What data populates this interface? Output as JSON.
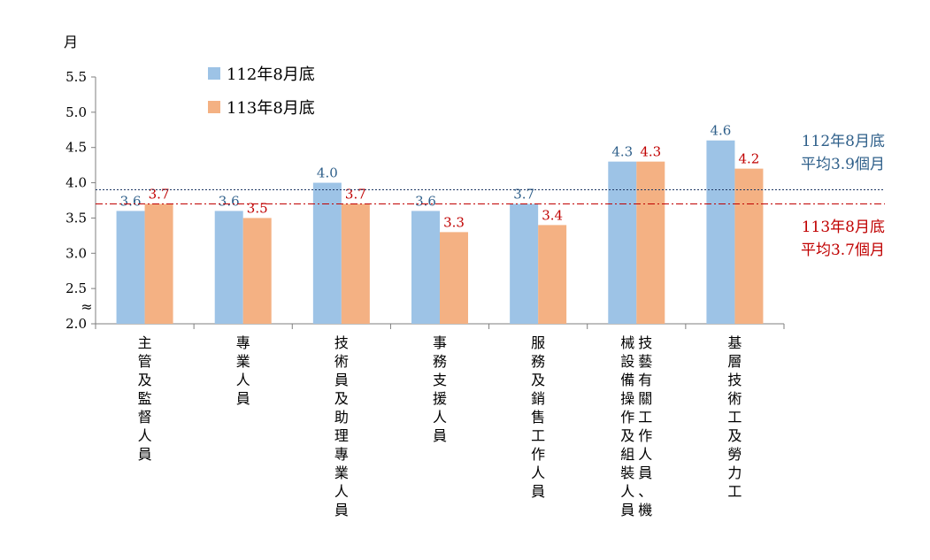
{
  "chart_data": {
    "type": "bar",
    "ylabel": "月",
    "ylim": [
      2.0,
      5.5
    ],
    "y_ticks": [
      "2.0",
      "2.5",
      "3.0",
      "3.5",
      "4.0",
      "4.5",
      "5.0",
      "5.5"
    ],
    "axis_break": true,
    "axis_break_symbol": "≈",
    "grid": false,
    "legend_position": "top-left",
    "categories": [
      [
        "主管及監督人員"
      ],
      [
        "專業人員"
      ],
      [
        "技術員及助理專業人員"
      ],
      [
        "事務支援人員"
      ],
      [
        "服務及銷售工作人員"
      ],
      [
        "技藝有關工作人員、機",
        "械設備操作及組裝人員"
      ],
      [
        "基層技術工及勞力工"
      ]
    ],
    "series": [
      {
        "name": "112年8月底",
        "color": "#9dc3e6",
        "label_color": "#2e5f8a",
        "values": [
          3.6,
          3.6,
          4.0,
          3.6,
          3.7,
          4.3,
          4.6
        ],
        "labels": [
          "3.6",
          "3.6",
          "4.0",
          "3.6",
          "3.7",
          "4.3",
          "4.6"
        ]
      },
      {
        "name": "113年8月底",
        "color": "#f4b183",
        "label_color": "#c00000",
        "values": [
          3.7,
          3.5,
          3.7,
          3.3,
          3.4,
          4.3,
          4.2
        ],
        "labels": [
          "3.7",
          "3.5",
          "3.7",
          "3.3",
          "3.4",
          "4.3",
          "4.2"
        ]
      }
    ],
    "reference_lines": [
      {
        "value": 3.9,
        "style": "dotted",
        "color": "#1f3864",
        "text_color": "#2e5f8a",
        "text": [
          "112年8月底",
          "平均3.9個月"
        ]
      },
      {
        "value": 3.7,
        "style": "dashdot",
        "color": "#c00000",
        "text_color": "#c00000",
        "text": [
          "113年8月底",
          "平均3.7個月"
        ]
      }
    ]
  }
}
